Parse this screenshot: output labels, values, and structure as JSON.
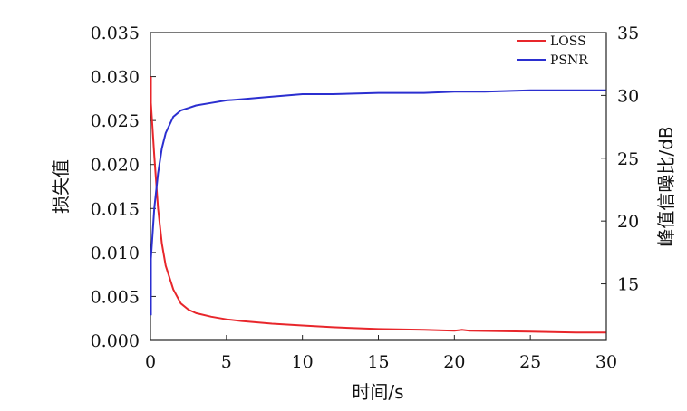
{
  "chart_data": {
    "type": "line",
    "xlabel": "时间/s",
    "ylabel_left": "损失值",
    "ylabel_right": "峰值信噪比/dB",
    "xlim": [
      0,
      30
    ],
    "ylim_left": [
      0,
      0.035
    ],
    "ylim_right": [
      10.5,
      35
    ],
    "x_ticks": [
      "0",
      "5",
      "10",
      "15",
      "20",
      "25",
      "30"
    ],
    "y_left_ticks": [
      "0.000",
      "0.005",
      "0.010",
      "0.015",
      "0.020",
      "0.025",
      "0.030",
      "0.035"
    ],
    "y_right_ticks": [
      "15",
      "20",
      "25",
      "30",
      "35"
    ],
    "grid": false,
    "legend_position": "top-right",
    "series": [
      {
        "name": "LOSS",
        "axis": "left",
        "color": "#e8262b",
        "x": [
          -0.3,
          0,
          0.25,
          0.5,
          0.75,
          1,
          1.5,
          2,
          2.5,
          3,
          4,
          5,
          6,
          8,
          10,
          12,
          15,
          18,
          20,
          20.5,
          21,
          25,
          28,
          30
        ],
        "y": [
          0.03,
          0.027,
          0.021,
          0.015,
          0.011,
          0.0085,
          0.0058,
          0.0042,
          0.0035,
          0.0031,
          0.0027,
          0.0024,
          0.0022,
          0.0019,
          0.0017,
          0.0015,
          0.0013,
          0.0012,
          0.0011,
          0.0012,
          0.0011,
          0.001,
          0.0009,
          0.0009
        ]
      },
      {
        "name": "PSNR",
        "axis": "right",
        "color": "#2b2fd0",
        "x": [
          -0.3,
          0,
          0.25,
          0.5,
          0.75,
          1,
          1.5,
          2,
          2.5,
          3,
          4,
          5,
          6,
          8,
          10,
          12,
          15,
          18,
          20,
          22,
          25,
          28,
          30
        ],
        "y": [
          12.5,
          17,
          21,
          23.8,
          25.8,
          27,
          28.3,
          28.8,
          29.0,
          29.2,
          29.4,
          29.6,
          29.7,
          29.9,
          30.1,
          30.1,
          30.2,
          30.2,
          30.3,
          30.3,
          30.4,
          30.4,
          30.4
        ]
      }
    ]
  }
}
